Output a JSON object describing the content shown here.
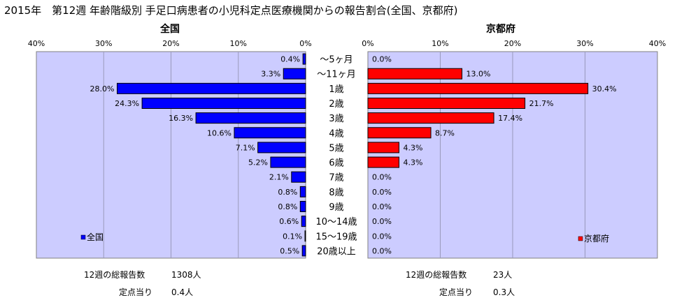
{
  "chart_data": {
    "type": "bar",
    "title": "2015年　第12週 年齢階級別 手足口病患者の小児科定点医療機関からの報告割合(全国、京都府)",
    "categories": [
      "～5ヶ月",
      "～11ヶ月",
      "1歳",
      "2歳",
      "3歳",
      "4歳",
      "5歳",
      "6歳",
      "7歳",
      "8歳",
      "9歳",
      "10～14歳",
      "15～19歳",
      "20歳以上"
    ],
    "xlim": [
      0,
      40
    ],
    "ticks": [
      "0%",
      "10%",
      "20%",
      "30%",
      "40%"
    ],
    "left_ticks": [
      "40%",
      "30%",
      "20%",
      "10%",
      "0%"
    ],
    "grid": true,
    "series": [
      {
        "name": "全国",
        "panel_title": "全国",
        "legend": "全国",
        "color": "#0000ff",
        "values": [
          0.4,
          3.3,
          28.0,
          24.3,
          16.3,
          10.6,
          7.1,
          5.2,
          2.1,
          0.8,
          0.8,
          0.6,
          0.1,
          0.5
        ],
        "labels": [
          "0.4%",
          "3.3%",
          "28.0%",
          "24.3%",
          "16.3%",
          "10.6%",
          "7.1%",
          "5.2%",
          "2.1%",
          "0.8%",
          "0.8%",
          "0.6%",
          "0.1%",
          "0.5%"
        ]
      },
      {
        "name": "京都府",
        "panel_title": "京都府",
        "legend": "京都府",
        "color": "#ff0000",
        "values": [
          0.0,
          13.0,
          30.4,
          21.7,
          17.4,
          8.7,
          4.3,
          4.3,
          0.0,
          0.0,
          0.0,
          0.0,
          0.0,
          0.0
        ],
        "labels": [
          "0.0%",
          "13.0%",
          "30.4%",
          "21.7%",
          "17.4%",
          "8.7%",
          "4.3%",
          "4.3%",
          "0.0%",
          "0.0%",
          "0.0%",
          "0.0%",
          "0.0%",
          "0.0%"
        ]
      }
    ]
  },
  "footer": {
    "national": {
      "total_label": "12週の総報告数",
      "total_value": "1308人",
      "per_label": "定点当り",
      "per_value": "0.4人"
    },
    "kyoto": {
      "total_label": "12週の総報告数",
      "total_value": "23人",
      "per_label": "定点当り",
      "per_value": "0.3人"
    }
  },
  "colors": {
    "plot_bg": "#ccccff",
    "grid": "#9999bb",
    "national": "#0000ff",
    "kyoto": "#ff0000"
  }
}
